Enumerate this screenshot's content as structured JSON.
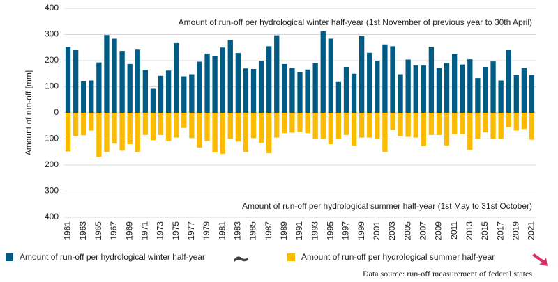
{
  "chart_data": {
    "type": "bar",
    "y_label": "Amount of run-off [mm]",
    "annotations": [
      "Amount of run-off per hydrological winter half-year (1st November of previous year to 30th April)",
      "Amount of run-off per hydrological summer half-year (1st May to 31st October)"
    ],
    "source": "Data source: run-off measurement of federal states",
    "categories": [
      "1961",
      null,
      "1963",
      null,
      "1965",
      null,
      "1967",
      null,
      "1969",
      null,
      "1971",
      null,
      "1973",
      null,
      "1975",
      null,
      "1977",
      null,
      "1979",
      null,
      "1981",
      null,
      "1983",
      null,
      "1985",
      null,
      "1987",
      null,
      "1989",
      null,
      "1991",
      null,
      "1993",
      null,
      "1995",
      null,
      "1997",
      null,
      "1999",
      null,
      "2001",
      null,
      "2003",
      null,
      "2005",
      null,
      "2007",
      null,
      "2009",
      null,
      "2011",
      null,
      "2013",
      null,
      "2015",
      null,
      "2017",
      null,
      "2019",
      null,
      "2021"
    ],
    "series": [
      {
        "name": "Amount of run-off per hydrological winter half-year",
        "color": "#005c85",
        "values": [
          252,
          240,
          120,
          124,
          193,
          298,
          284,
          237,
          187,
          242,
          165,
          92,
          142,
          162,
          267,
          140,
          148,
          196,
          227,
          218,
          250,
          279,
          229,
          170,
          168,
          200,
          255,
          297,
          187,
          171,
          155,
          166,
          190,
          312,
          284,
          118,
          176,
          150,
          296,
          230,
          200,
          262,
          255,
          148,
          204,
          181,
          181,
          253,
          172,
          192,
          224,
          185,
          205,
          133,
          176,
          197,
          124,
          240,
          145,
          173,
          145
        ]
      },
      {
        "name": "Amount of run-off per hydrological summer half-year",
        "color": "#fabb00",
        "values": [
          -148,
          -90,
          -86,
          -68,
          -168,
          -150,
          -118,
          -145,
          -120,
          -150,
          -85,
          -105,
          -85,
          -108,
          -95,
          -58,
          -97,
          -133,
          -108,
          -152,
          -157,
          -100,
          -110,
          -150,
          -97,
          -115,
          -155,
          -95,
          -78,
          -76,
          -73,
          -78,
          -100,
          -100,
          -120,
          -100,
          -85,
          -125,
          -95,
          -95,
          -100,
          -150,
          -65,
          -90,
          -92,
          -95,
          -128,
          -85,
          -85,
          -125,
          -82,
          -82,
          -142,
          -100,
          -75,
          -100,
          -100,
          -55,
          -68,
          -62,
          -103
        ]
      }
    ],
    "ylim": [
      -400,
      400
    ],
    "yticks": [
      {
        "value": -400,
        "label": "400"
      },
      {
        "value": -300,
        "label": "300"
      },
      {
        "value": -200,
        "label": "200"
      },
      {
        "value": -100,
        "label": "100"
      },
      0,
      100,
      200,
      300,
      400
    ],
    "grid": true
  }
}
